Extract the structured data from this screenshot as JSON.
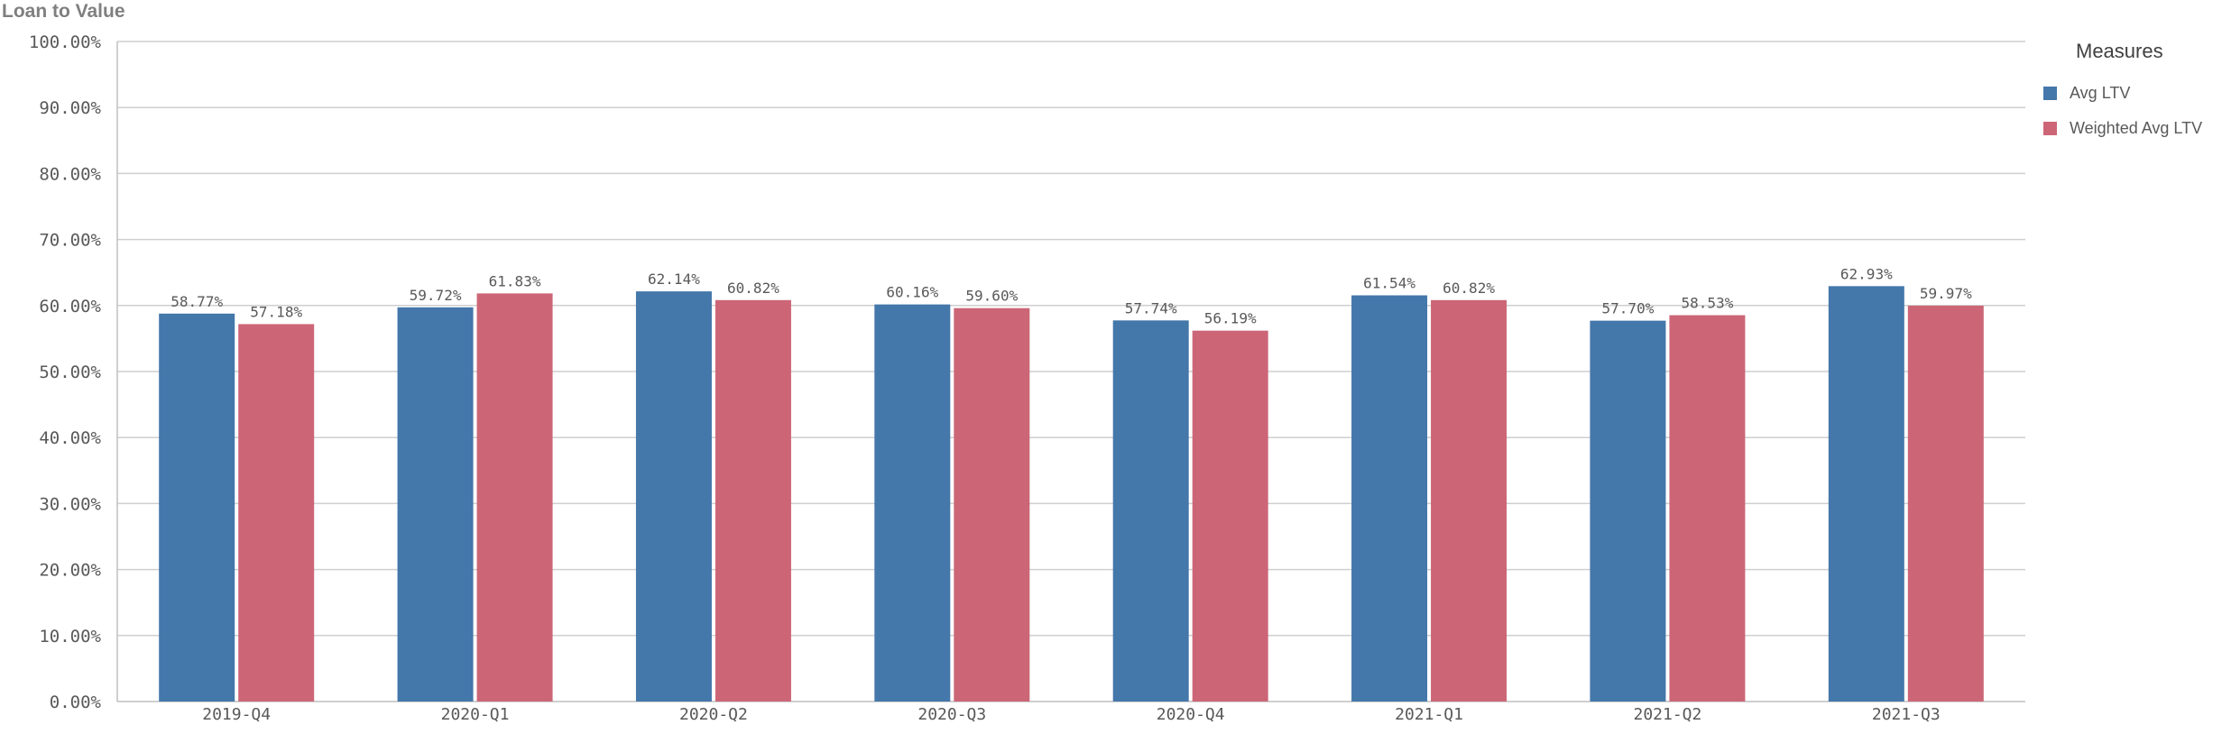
{
  "title": "Loan to Value",
  "legend": {
    "title": "Measures",
    "items": [
      {
        "label": "Avg LTV",
        "color": "#4477aa"
      },
      {
        "label": "Weighted Avg LTV",
        "color": "#cc6677"
      }
    ]
  },
  "chart_data": {
    "type": "bar",
    "title": "Loan to Value",
    "xlabel": "",
    "ylabel": "",
    "ylim": [
      0,
      100
    ],
    "yticks": [
      "0.00%",
      "10.00%",
      "20.00%",
      "30.00%",
      "40.00%",
      "50.00%",
      "60.00%",
      "70.00%",
      "80.00%",
      "90.00%",
      "100.00%"
    ],
    "grid": true,
    "legend_position": "top-right",
    "categories": [
      "2019-Q4",
      "2020-Q1",
      "2020-Q2",
      "2020-Q3",
      "2020-Q4",
      "2021-Q1",
      "2021-Q2",
      "2021-Q3"
    ],
    "series": [
      {
        "name": "Avg LTV",
        "color": "#4477aa",
        "values": [
          58.77,
          59.72,
          62.14,
          60.16,
          57.74,
          61.54,
          57.7,
          62.93
        ],
        "labels": [
          "58.77%",
          "59.72%",
          "62.14%",
          "60.16%",
          "57.74%",
          "61.54%",
          "57.70%",
          "62.93%"
        ]
      },
      {
        "name": "Weighted Avg LTV",
        "color": "#cc6677",
        "values": [
          57.18,
          61.83,
          60.82,
          59.6,
          56.19,
          60.82,
          58.53,
          59.97
        ],
        "labels": [
          "57.18%",
          "61.83%",
          "60.82%",
          "59.60%",
          "56.19%",
          "60.82%",
          "58.53%",
          "59.97%"
        ]
      }
    ]
  }
}
